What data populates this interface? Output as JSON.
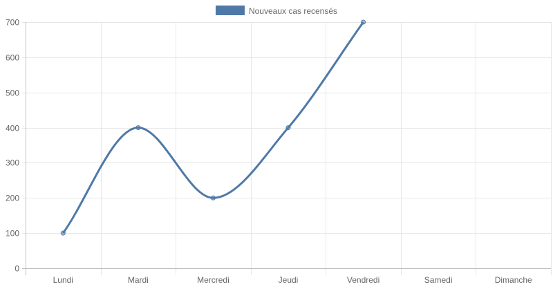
{
  "chart_data": {
    "type": "line",
    "categories": [
      "Lundi",
      "Mardi",
      "Mercredi",
      "Jeudi",
      "Vendredi",
      "Samedi",
      "Dimanche"
    ],
    "series": [
      {
        "name": "Nouveaux cas recensés",
        "values": [
          100,
          400,
          200,
          400,
          700,
          null,
          null
        ],
        "color": "#4e79a7"
      }
    ],
    "y_ticks": [
      0,
      100,
      200,
      300,
      400,
      500,
      600,
      700
    ],
    "ylim": [
      0,
      700
    ],
    "smooth": true,
    "legend_position": "top-center",
    "grid": true
  }
}
